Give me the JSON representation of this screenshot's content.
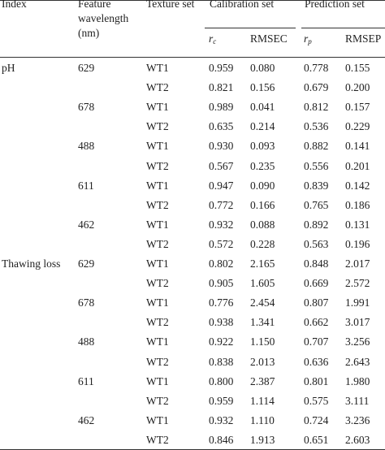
{
  "headers": {
    "index": "Index",
    "feature_wavelength": [
      "Feature",
      "wavelength",
      "(nm)"
    ],
    "texture_set": "Texture set",
    "calibration_set": "Calibration set",
    "prediction_set": "Prediction set",
    "r_c": {
      "base": "r",
      "sub": "c"
    },
    "rmsec": "RMSEC",
    "r_p": {
      "base": "r",
      "sub": "p"
    },
    "rmsep": "RMSEP"
  },
  "rows": [
    {
      "index": "pH",
      "wavelength": "629",
      "texture": "WT1",
      "rc": "0.959",
      "rmsec": "0.080",
      "rp": "0.778",
      "rmsep": "0.155"
    },
    {
      "index": "",
      "wavelength": "",
      "texture": "WT2",
      "rc": "0.821",
      "rmsec": "0.156",
      "rp": "0.679",
      "rmsep": "0.200"
    },
    {
      "index": "",
      "wavelength": "678",
      "texture": "WT1",
      "rc": "0.989",
      "rmsec": "0.041",
      "rp": "0.812",
      "rmsep": "0.157"
    },
    {
      "index": "",
      "wavelength": "",
      "texture": "WT2",
      "rc": "0.635",
      "rmsec": "0.214",
      "rp": "0.536",
      "rmsep": "0.229"
    },
    {
      "index": "",
      "wavelength": "488",
      "texture": "WT1",
      "rc": "0.930",
      "rmsec": "0.093",
      "rp": "0.882",
      "rmsep": "0.141"
    },
    {
      "index": "",
      "wavelength": "",
      "texture": "WT2",
      "rc": "0.567",
      "rmsec": "0.235",
      "rp": "0.556",
      "rmsep": "0.201"
    },
    {
      "index": "",
      "wavelength": "611",
      "texture": "WT1",
      "rc": "0.947",
      "rmsec": "0.090",
      "rp": "0.839",
      "rmsep": "0.142"
    },
    {
      "index": "",
      "wavelength": "",
      "texture": "WT2",
      "rc": "0.772",
      "rmsec": "0.166",
      "rp": "0.765",
      "rmsep": "0.186"
    },
    {
      "index": "",
      "wavelength": "462",
      "texture": "WT1",
      "rc": "0.932",
      "rmsec": "0.088",
      "rp": "0.892",
      "rmsep": "0.131"
    },
    {
      "index": "",
      "wavelength": "",
      "texture": "WT2",
      "rc": "0.572",
      "rmsec": "0.228",
      "rp": "0.563",
      "rmsep": "0.196"
    },
    {
      "index": "Thawing loss",
      "wavelength": "629",
      "texture": "WT1",
      "rc": "0.802",
      "rmsec": "2.165",
      "rp": "0.848",
      "rmsep": "2.017"
    },
    {
      "index": "",
      "wavelength": "",
      "texture": "WT2",
      "rc": "0.905",
      "rmsec": "1.605",
      "rp": "0.669",
      "rmsep": "2.572"
    },
    {
      "index": "",
      "wavelength": "678",
      "texture": "WT1",
      "rc": "0.776",
      "rmsec": "2.454",
      "rp": "0.807",
      "rmsep": "1.991"
    },
    {
      "index": "",
      "wavelength": "",
      "texture": "WT2",
      "rc": "0.938",
      "rmsec": "1.341",
      "rp": "0.662",
      "rmsep": "3.017"
    },
    {
      "index": "",
      "wavelength": "488",
      "texture": "WT1",
      "rc": "0.922",
      "rmsec": "1.150",
      "rp": "0.707",
      "rmsep": "3.256"
    },
    {
      "index": "",
      "wavelength": "",
      "texture": "WT2",
      "rc": "0.838",
      "rmsec": "2.013",
      "rp": "0.636",
      "rmsep": "2.643"
    },
    {
      "index": "",
      "wavelength": "611",
      "texture": "WT1",
      "rc": "0.800",
      "rmsec": "2.387",
      "rp": "0.801",
      "rmsep": "1.980"
    },
    {
      "index": "",
      "wavelength": "",
      "texture": "WT2",
      "rc": "0.959",
      "rmsec": "1.114",
      "rp": "0.575",
      "rmsep": "3.111"
    },
    {
      "index": "",
      "wavelength": "462",
      "texture": "WT1",
      "rc": "0.932",
      "rmsec": "1.110",
      "rp": "0.724",
      "rmsep": "3.236"
    },
    {
      "index": "",
      "wavelength": "",
      "texture": "WT2",
      "rc": "0.846",
      "rmsec": "1.913",
      "rp": "0.651",
      "rmsep": "2.603"
    }
  ]
}
